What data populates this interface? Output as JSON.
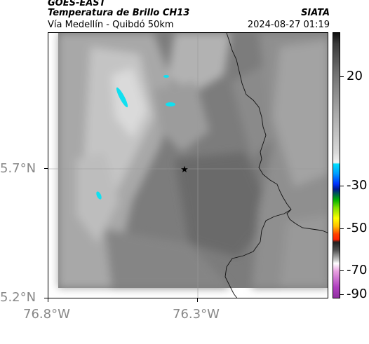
{
  "header": {
    "satellite": "GOES-EAST",
    "product": "Temperatura de Brillo CH13",
    "source": "SIATA",
    "region": "Vía Medellín - Quibdó 50km",
    "timestamp": "2024-08-27 01:19"
  },
  "axes": {
    "lon_ticks": [
      "76.8°W",
      "76.3°W"
    ],
    "lat_ticks": [
      "5.7°N",
      "5.2°N"
    ]
  },
  "colorbar": {
    "ticks": [
      "20",
      "-30",
      "-50",
      "-70",
      "-90"
    ],
    "colors": [
      "#fffde6",
      "#e0e0e0",
      "#a0a0a0",
      "#505050",
      "#101010",
      "#00d8ff",
      "#0040ff",
      "#00c000",
      "#ffff00",
      "#ff3000",
      "#202020",
      "#ffffff",
      "#b050c0"
    ]
  },
  "map": {
    "marker_icon": "star-icon",
    "cold_cloud_color": "#10e0f0"
  }
}
